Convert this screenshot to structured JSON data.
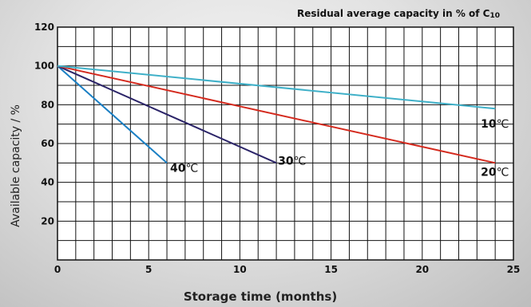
{
  "chart_data": {
    "type": "line",
    "title_main": "Residual average capacity in % of C",
    "title_sub": "10",
    "xlabel": "Storage time (months)",
    "ylabel": "Available capacity / %",
    "xlim": [
      0,
      25
    ],
    "ylim": [
      0,
      120
    ],
    "x_ticks": [
      0,
      5,
      10,
      15,
      20,
      25
    ],
    "y_ticks": [
      20,
      40,
      60,
      80,
      100,
      120
    ],
    "x_minor_step": 1,
    "y_minor_step": 10,
    "grid": true,
    "series": [
      {
        "label_num": "40",
        "label_unit": "℃",
        "color": "#1a7fc4",
        "x": [
          0,
          6
        ],
        "y": [
          100,
          50
        ]
      },
      {
        "label_num": "30",
        "label_unit": "℃",
        "color": "#2b2468",
        "x": [
          0,
          12
        ],
        "y": [
          100,
          50
        ]
      },
      {
        "label_num": "20",
        "label_unit": "℃",
        "color": "#d42a1e",
        "x": [
          0,
          24
        ],
        "y": [
          100,
          50
        ]
      },
      {
        "label_num": "10",
        "label_unit": "℃",
        "color": "#3fb0c8",
        "x": [
          0,
          24
        ],
        "y": [
          100,
          78
        ]
      }
    ]
  }
}
